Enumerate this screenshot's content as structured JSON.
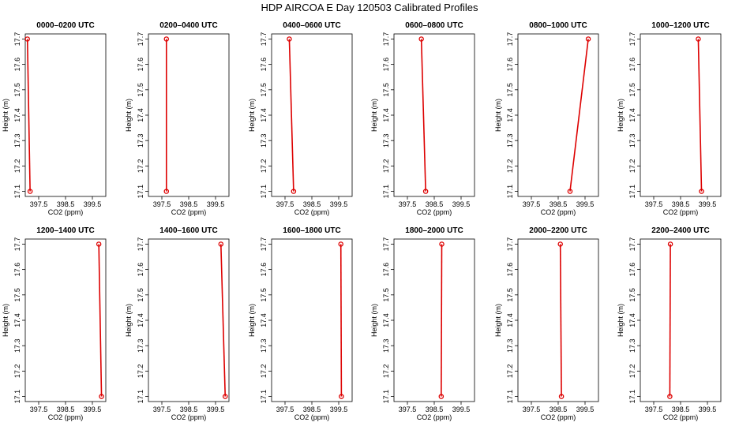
{
  "title": "HDP AIRCOA E  Day 120503  Calibrated Profiles",
  "chart_data": [
    {
      "type": "line",
      "title": "0000–0200 UTC",
      "xlabel": "CO2 (ppm)",
      "ylabel": "Height (m)",
      "xlim": [
        397.0,
        400.0
      ],
      "ylim": [
        17.08,
        17.72
      ],
      "x_ticks": [
        397.5,
        398.5,
        399.5
      ],
      "y_ticks": [
        17.1,
        17.2,
        17.3,
        17.4,
        17.5,
        17.6,
        17.7
      ],
      "series": [
        {
          "color": "#dd0000",
          "points": [
            {
              "x": 397.08,
              "y": 17.7
            },
            {
              "x": 397.18,
              "y": 17.1
            }
          ]
        }
      ]
    },
    {
      "type": "line",
      "title": "0200–0400 UTC",
      "xlabel": "CO2 (ppm)",
      "ylabel": "Height (m)",
      "xlim": [
        397.0,
        400.0
      ],
      "ylim": [
        17.08,
        17.72
      ],
      "x_ticks": [
        397.5,
        398.5,
        399.5
      ],
      "y_ticks": [
        17.1,
        17.2,
        17.3,
        17.4,
        17.5,
        17.6,
        17.7
      ],
      "series": [
        {
          "color": "#dd0000",
          "points": [
            {
              "x": 397.67,
              "y": 17.7
            },
            {
              "x": 397.67,
              "y": 17.1
            }
          ]
        }
      ]
    },
    {
      "type": "line",
      "title": "0400–0600 UTC",
      "xlabel": "CO2 (ppm)",
      "ylabel": "Height (m)",
      "xlim": [
        397.0,
        400.0
      ],
      "ylim": [
        17.08,
        17.72
      ],
      "x_ticks": [
        397.5,
        398.5,
        399.5
      ],
      "y_ticks": [
        17.1,
        17.2,
        17.3,
        17.4,
        17.5,
        17.6,
        17.7
      ],
      "series": [
        {
          "color": "#dd0000",
          "points": [
            {
              "x": 397.66,
              "y": 17.7
            },
            {
              "x": 397.82,
              "y": 17.1
            }
          ]
        }
      ]
    },
    {
      "type": "line",
      "title": "0600–0800 UTC",
      "xlabel": "CO2 (ppm)",
      "ylabel": "Height (m)",
      "xlim": [
        397.0,
        400.0
      ],
      "ylim": [
        17.08,
        17.72
      ],
      "x_ticks": [
        397.5,
        398.5,
        399.5
      ],
      "y_ticks": [
        17.1,
        17.2,
        17.3,
        17.4,
        17.5,
        17.6,
        17.7
      ],
      "series": [
        {
          "color": "#dd0000",
          "points": [
            {
              "x": 398.02,
              "y": 17.7
            },
            {
              "x": 398.18,
              "y": 17.1
            }
          ]
        }
      ]
    },
    {
      "type": "line",
      "title": "0800–1000 UTC",
      "xlabel": "CO2 (ppm)",
      "ylabel": "Height (m)",
      "xlim": [
        397.0,
        400.0
      ],
      "ylim": [
        17.08,
        17.72
      ],
      "x_ticks": [
        397.5,
        398.5,
        399.5
      ],
      "y_ticks": [
        17.1,
        17.2,
        17.3,
        17.4,
        17.5,
        17.6,
        17.7
      ],
      "series": [
        {
          "color": "#dd0000",
          "points": [
            {
              "x": 399.62,
              "y": 17.7
            },
            {
              "x": 398.94,
              "y": 17.1
            }
          ]
        }
      ]
    },
    {
      "type": "line",
      "title": "1000–1200 UTC",
      "xlabel": "CO2 (ppm)",
      "ylabel": "Height (m)",
      "xlim": [
        397.0,
        400.0
      ],
      "ylim": [
        17.08,
        17.72
      ],
      "x_ticks": [
        397.5,
        398.5,
        399.5
      ],
      "y_ticks": [
        17.1,
        17.2,
        17.3,
        17.4,
        17.5,
        17.6,
        17.7
      ],
      "series": [
        {
          "color": "#dd0000",
          "points": [
            {
              "x": 399.16,
              "y": 17.7
            },
            {
              "x": 399.28,
              "y": 17.1
            }
          ]
        }
      ]
    },
    {
      "type": "line",
      "title": "1200–1400 UTC",
      "xlabel": "CO2 (ppm)",
      "ylabel": "Height (m)",
      "xlim": [
        397.0,
        400.0
      ],
      "ylim": [
        17.08,
        17.72
      ],
      "x_ticks": [
        397.5,
        398.5,
        399.5
      ],
      "y_ticks": [
        17.1,
        17.2,
        17.3,
        17.4,
        17.5,
        17.6,
        17.7
      ],
      "series": [
        {
          "color": "#dd0000",
          "points": [
            {
              "x": 399.74,
              "y": 17.7
            },
            {
              "x": 399.84,
              "y": 17.1
            }
          ]
        }
      ]
    },
    {
      "type": "line",
      "title": "1400–1600 UTC",
      "xlabel": "CO2 (ppm)",
      "ylabel": "Height (m)",
      "xlim": [
        397.0,
        400.0
      ],
      "ylim": [
        17.08,
        17.72
      ],
      "x_ticks": [
        397.5,
        398.5,
        399.5
      ],
      "y_ticks": [
        17.1,
        17.2,
        17.3,
        17.4,
        17.5,
        17.6,
        17.7
      ],
      "series": [
        {
          "color": "#dd0000",
          "points": [
            {
              "x": 399.7,
              "y": 17.7
            },
            {
              "x": 399.86,
              "y": 17.1
            }
          ]
        }
      ]
    },
    {
      "type": "line",
      "title": "1600–1800 UTC",
      "xlabel": "CO2 (ppm)",
      "ylabel": "Height (m)",
      "xlim": [
        397.0,
        400.0
      ],
      "ylim": [
        17.08,
        17.72
      ],
      "x_ticks": [
        397.5,
        398.5,
        399.5
      ],
      "y_ticks": [
        17.1,
        17.2,
        17.3,
        17.4,
        17.5,
        17.6,
        17.7
      ],
      "series": [
        {
          "color": "#dd0000",
          "points": [
            {
              "x": 399.58,
              "y": 17.7
            },
            {
              "x": 399.6,
              "y": 17.1
            }
          ]
        }
      ]
    },
    {
      "type": "line",
      "title": "1800–2000 UTC",
      "xlabel": "CO2 (ppm)",
      "ylabel": "Height (m)",
      "xlim": [
        397.0,
        400.0
      ],
      "ylim": [
        17.08,
        17.72
      ],
      "x_ticks": [
        397.5,
        398.5,
        399.5
      ],
      "y_ticks": [
        17.1,
        17.2,
        17.3,
        17.4,
        17.5,
        17.6,
        17.7
      ],
      "series": [
        {
          "color": "#dd0000",
          "points": [
            {
              "x": 398.78,
              "y": 17.7
            },
            {
              "x": 398.76,
              "y": 17.1
            }
          ]
        }
      ]
    },
    {
      "type": "line",
      "title": "2000–2200 UTC",
      "xlabel": "CO2 (ppm)",
      "ylabel": "Height (m)",
      "xlim": [
        397.0,
        400.0
      ],
      "ylim": [
        17.08,
        17.72
      ],
      "x_ticks": [
        397.5,
        398.5,
        399.5
      ],
      "y_ticks": [
        17.1,
        17.2,
        17.3,
        17.4,
        17.5,
        17.6,
        17.7
      ],
      "series": [
        {
          "color": "#dd0000",
          "points": [
            {
              "x": 398.58,
              "y": 17.7
            },
            {
              "x": 398.62,
              "y": 17.1
            }
          ]
        }
      ]
    },
    {
      "type": "line",
      "title": "2200–2400 UTC",
      "xlabel": "CO2 (ppm)",
      "ylabel": "Height (m)",
      "xlim": [
        397.0,
        400.0
      ],
      "ylim": [
        17.08,
        17.72
      ],
      "x_ticks": [
        397.5,
        398.5,
        399.5
      ],
      "y_ticks": [
        17.1,
        17.2,
        17.3,
        17.4,
        17.5,
        17.6,
        17.7
      ],
      "series": [
        {
          "color": "#dd0000",
          "points": [
            {
              "x": 398.12,
              "y": 17.7
            },
            {
              "x": 398.1,
              "y": 17.1
            }
          ]
        }
      ]
    }
  ]
}
